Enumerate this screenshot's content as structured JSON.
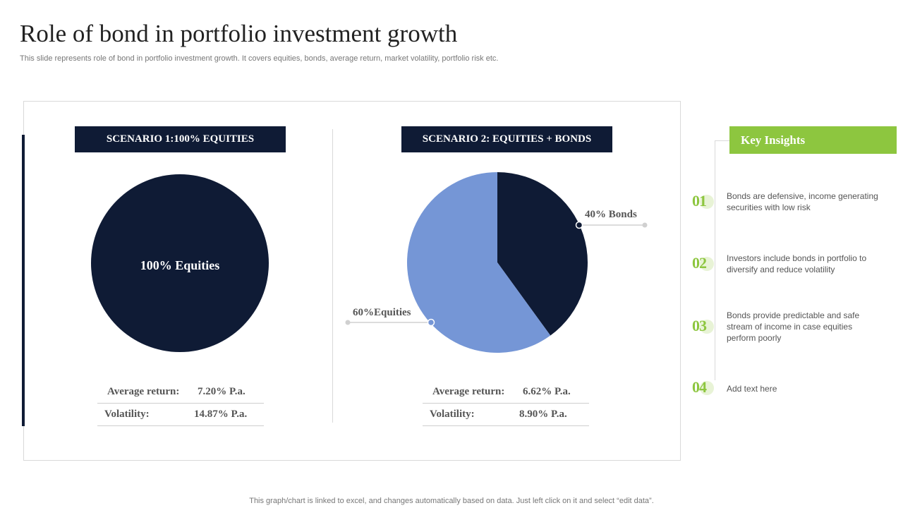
{
  "title": "Role of bond in portfolio investment growth",
  "subtitle": "This slide represents role of bond in portfolio investment growth. It covers equities, bonds, average return, market volatility, portfolio risk etc.",
  "colors": {
    "navy": "#0f1b35",
    "blue": "#7596d6",
    "green": "#8dc63f"
  },
  "scenario1": {
    "header": "SCENARIO 1:100% EQUITIES",
    "avg_return_label": "Average return:",
    "avg_return_value": "7.20% P.a.",
    "volatility_label": "Volatility:",
    "volatility_value": "14.87% P.a."
  },
  "scenario2": {
    "header": "SCENARIO 2: EQUITIES  + BONDS",
    "avg_return_label": "Average return:",
    "avg_return_value": "6.62% P.a.",
    "volatility_label": "Volatility:",
    "volatility_value": "8.90% P.a."
  },
  "chart_data": [
    {
      "type": "pie",
      "title": "SCENARIO 1:100% EQUITIES",
      "slices": [
        {
          "name": "Equities",
          "value": 100,
          "label": "100% Equities",
          "color": "#0f1b35"
        }
      ]
    },
    {
      "type": "pie",
      "title": "SCENARIO 2: EQUITIES  + BONDS",
      "slices": [
        {
          "name": "Bonds",
          "value": 40,
          "label": "40% Bonds",
          "color": "#0f1b35"
        },
        {
          "name": "Equities",
          "value": 60,
          "label": "60%Equities",
          "color": "#7596d6"
        }
      ]
    }
  ],
  "insights": {
    "header": "Key Insights",
    "items": [
      {
        "num": "01",
        "text": "Bonds are defensive,  income generating securities with low risk"
      },
      {
        "num": "02",
        "text": "Investors include bonds in portfolio to diversify  and reduce volatility"
      },
      {
        "num": "03",
        "text": "Bonds provide  predictable and safe stream of income in case equities perform  poorly"
      },
      {
        "num": "04",
        "text": "Add text here"
      }
    ]
  },
  "footer": "This graph/chart is linked to excel,  and changes automatically based on data. Just left click on it and select “edit data”."
}
